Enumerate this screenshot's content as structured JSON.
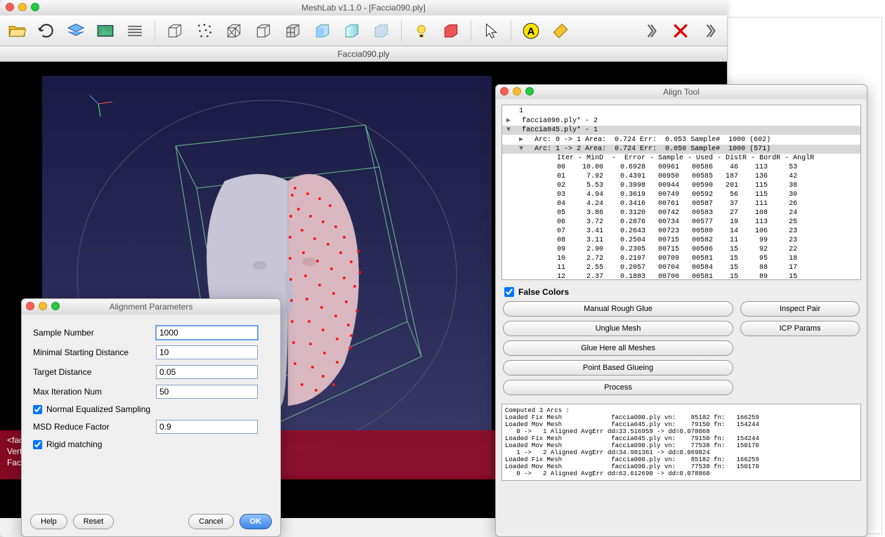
{
  "main_window": {
    "title": "MeshLab v1.1.0 - [Faccia090.ply]",
    "tab": "Faccia090.ply"
  },
  "status": {
    "file": "<faccia045.ply>",
    "vertices": "Vertices: 79150 (242537)",
    "faces": "Faces: 154244 (470673)"
  },
  "align": {
    "title": "Align Tool",
    "tree": {
      "root": "1",
      "item1": "faccia090.ply* - 2",
      "item2": "faccia045.ply* - 1",
      "arc0": "Arc: 0 -> 1 Area:  0.724 Err:  0.053 Sample#  1000 (602)",
      "arc1": "Arc: 1 -> 2 Area:  0.724 Err:  0.050 Sample#  1000 (571)",
      "header": "Iter - MinD  -  Error - Sample - Used - DistR - BordR - AnglR",
      "rows": [
        "00    10.00    0.6928   00961   00586    46    113     53",
        "01     7.92    0.4391   00950   00585   187    136     42",
        "02     5.53    0.3998   00944   00590   201    115     38",
        "03     4.94    0.3619   00749   00592    56    115     30",
        "04     4.24    0.3416   00761   00587    37    111     26",
        "05     3.86    0.3120   00742   00583    27    108     24",
        "06     3.72    0.2876   00734   00577    19    113     25",
        "07     3.41    0.2643   00723   00580    14    106     23",
        "08     3.11    0.2504   00715   00582    11     99     23",
        "09     2.90    0.2305   00715   00586    15     92     22",
        "10     2.72    0.2197   00709   00581    15     95     18",
        "11     2.55    0.2057   00704   00584    15     88     17",
        "12     2.37    0.1883   00700   00581    15     89     15"
      ]
    },
    "false_colors": "False Colors",
    "buttons": {
      "inspect": "Inspect Pair",
      "icp": "ICP Params",
      "manual_glue": "Manual Rough Glue",
      "unglue": "Unglue Mesh",
      "glue_all": "Glue Here all Meshes",
      "point_glue": "Point Based Glueing",
      "process": "Process"
    },
    "log": "Computed 3 Arcs :\nLoaded Fix Mesh             faccia000.ply vn:    85182 fn:   166259\nLoaded Mov Mesh             faccia045.ply vn:    79150 fn:   154244\n   0 ->   1 Aligned AvgErr dd=33.516959 -> dd=0.078068\nLoaded Fix Mesh             faccia045.ply vn:    79150 fn:   154244\nLoaded Mov Mesh             faccia090.ply vn:    77538 fn:   150170\n   1 ->   2 Aligned AvgErr dd=34.981361 -> dd=0.069824\nLoaded Fix Mesh             faccia000.ply vn:    85182 fn:   166259\nLoaded Mov Mesh             faccia090.ply vn:    77538 fn:   150170\n   0 ->   2 Aligned AvgErr dd=63.612690 -> dd=0.078868"
  },
  "params": {
    "title": "Alignment Parameters",
    "sample_label": "Sample Number",
    "sample_value": "1000",
    "minstart_label": "Minimal Starting Distance",
    "minstart_value": "10",
    "target_label": "Target Distance",
    "target_value": "0.05",
    "maxiter_label": "Max Iteration Num",
    "maxiter_value": "50",
    "neq_label": "Normal Equalized Sampling",
    "msd_label": "MSD Reduce Factor",
    "msd_value": "0.9",
    "rigid_label": "Rigid matching",
    "help": "Help",
    "reset": "Reset",
    "cancel": "Cancel",
    "ok": "OK"
  }
}
